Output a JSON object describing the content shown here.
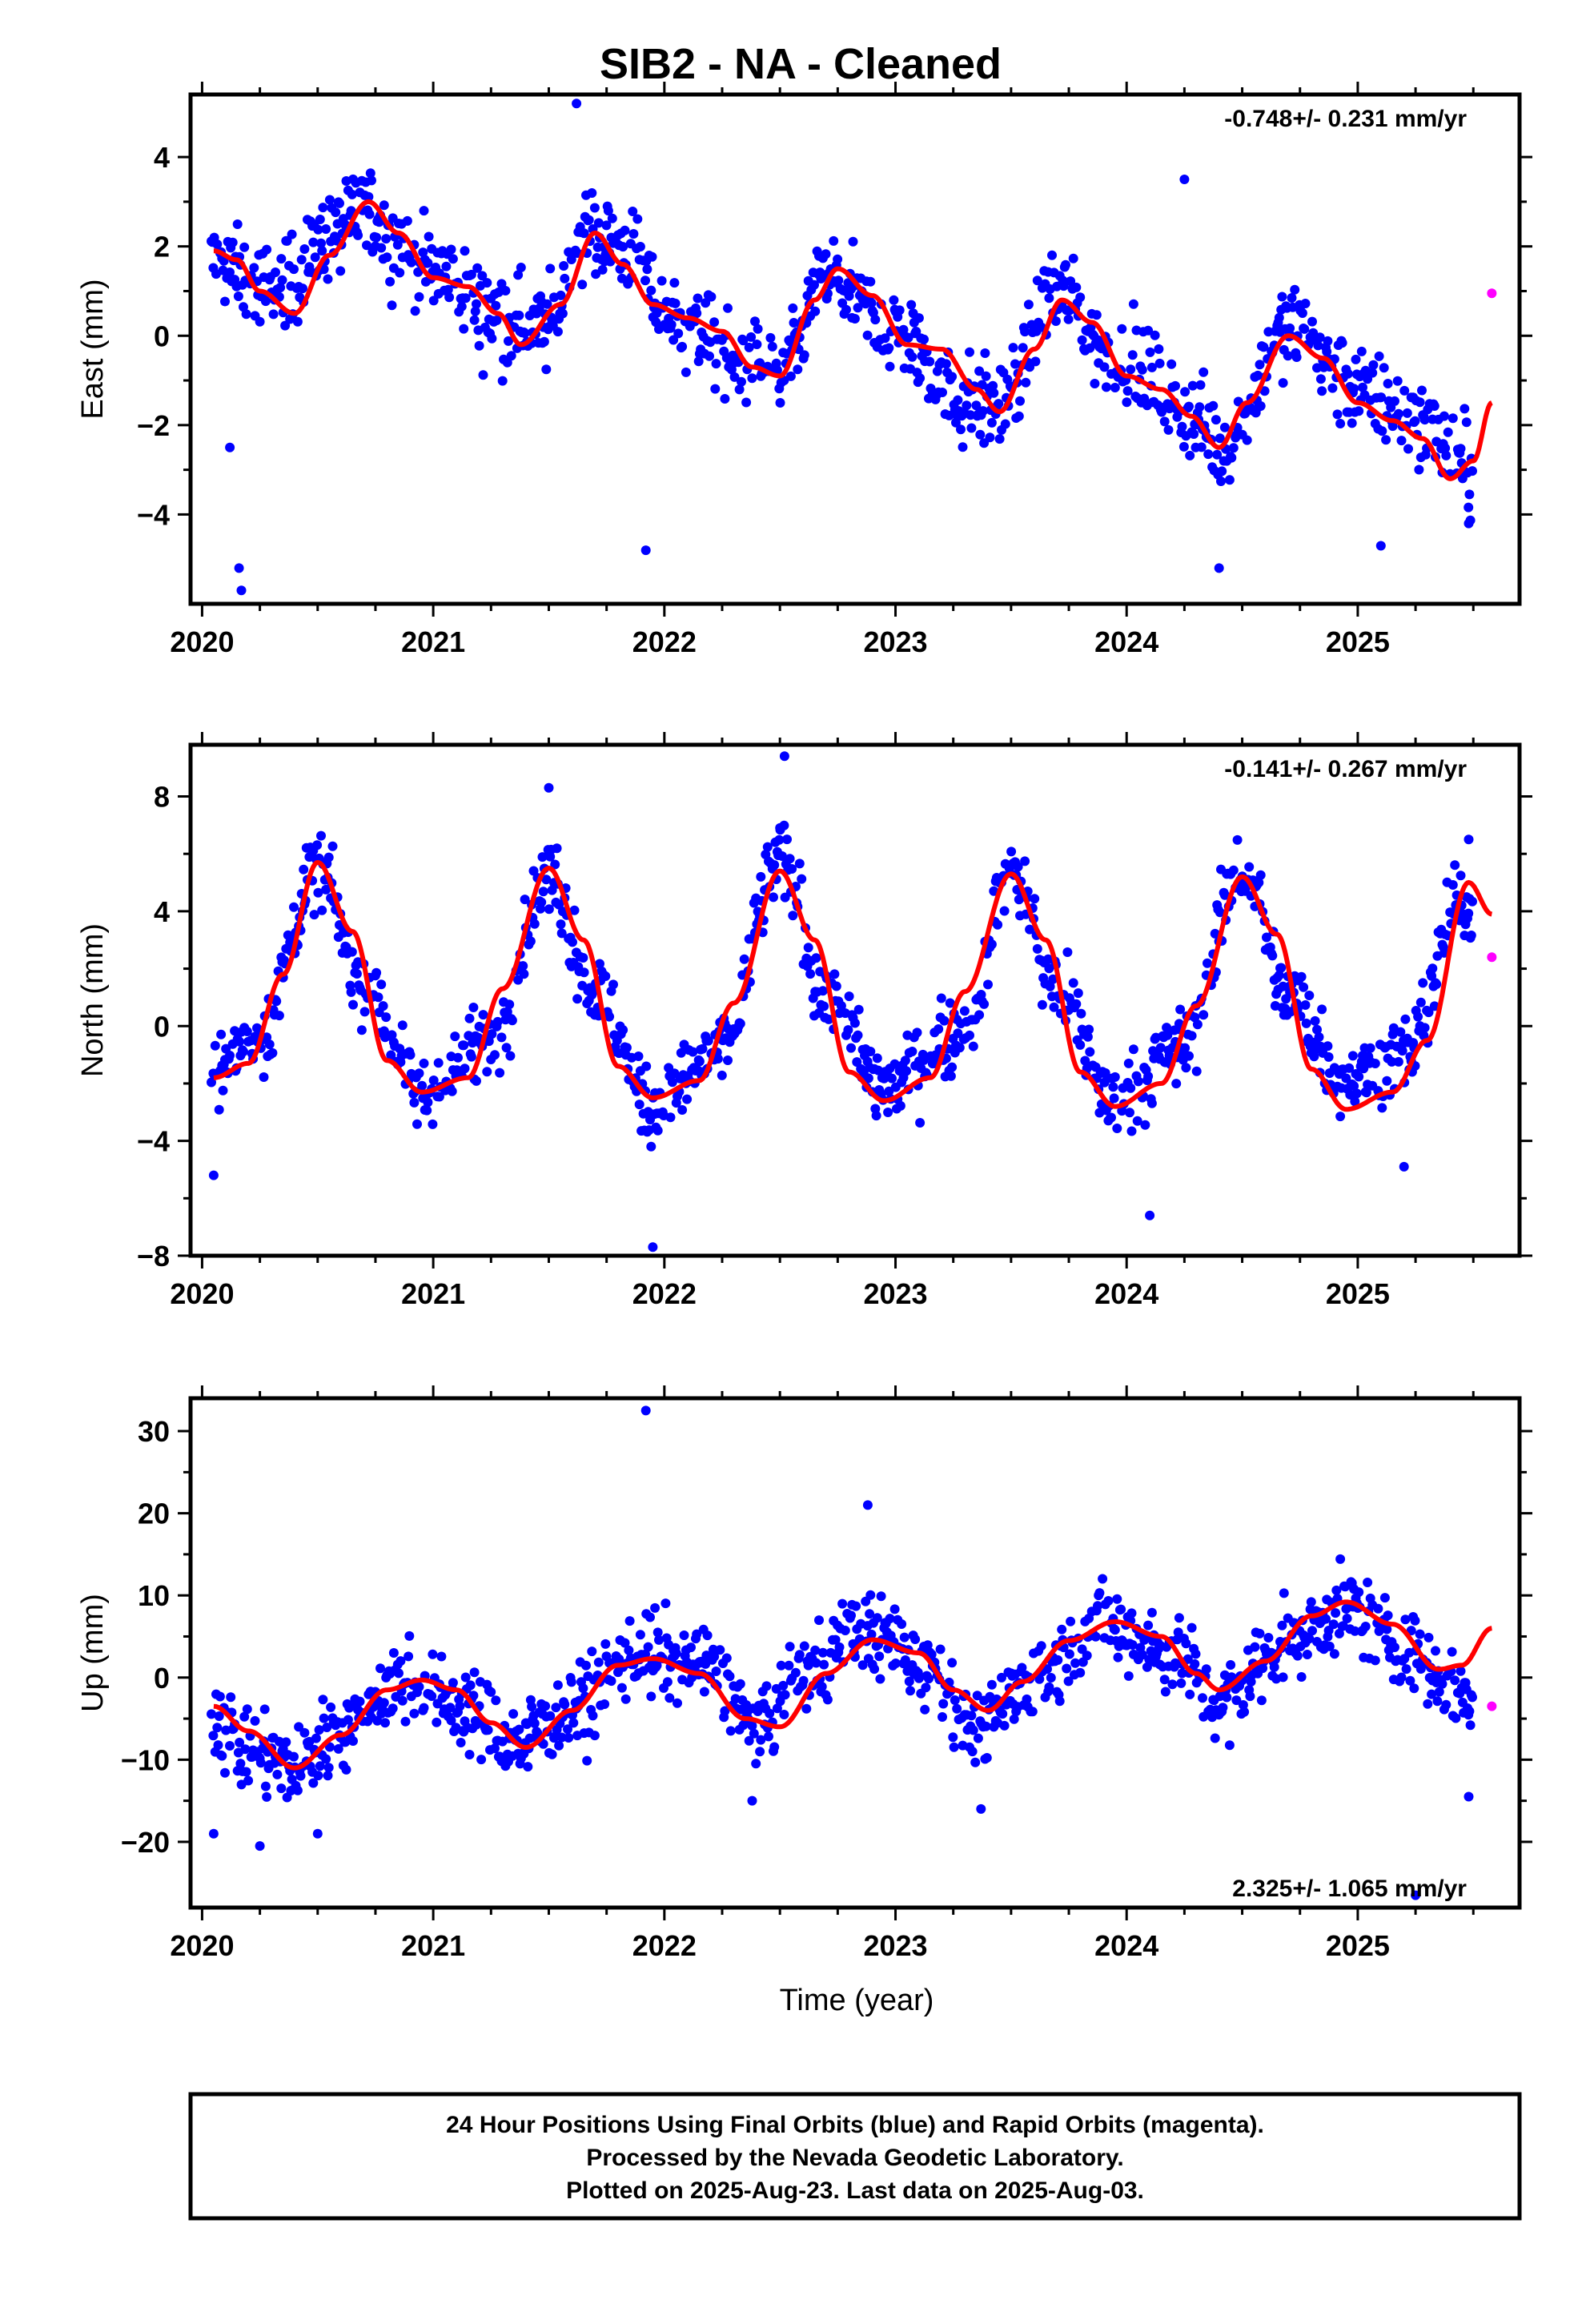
{
  "title": "SIB2  - NA - Cleaned",
  "x_axis_label": "Time (year)",
  "footer": {
    "line1": "24 Hour Positions Using Final Orbits (blue) and Rapid Orbits (magenta).",
    "line2": "Processed by the Nevada Geodetic Laboratory.",
    "line3": "Plotted on 2025-Aug-23. Last data on 2025-Aug-03."
  },
  "colors": {
    "final_orbits": "#0000ff",
    "rapid_orbits": "#ff00ff",
    "model_fit": "#ff0000",
    "frame": "#000000"
  },
  "chart_data": [
    {
      "type": "scatter",
      "panel": "east",
      "ylabel": "East (mm)",
      "rate": "-0.748+/- 0.231 mm/yr",
      "rate_position": "top-right",
      "xlim": [
        2019.95,
        2025.7
      ],
      "ylim": [
        -6,
        5.4
      ],
      "x_ticks": [
        "2020",
        "2021",
        "2022",
        "2023",
        "2024",
        "2025"
      ],
      "y_ticks": [
        "4",
        "2",
        "0",
        "−2",
        "−4"
      ],
      "y_tick_values": [
        4,
        2,
        0,
        -2,
        -4
      ],
      "series": [
        {
          "kind": "model_fit",
          "color": "#ff0000",
          "x": [
            2020.05,
            2020.15,
            2020.25,
            2020.4,
            2020.55,
            2020.72,
            2020.85,
            2021.0,
            2021.15,
            2021.28,
            2021.38,
            2021.55,
            2021.7,
            2021.82,
            2021.95,
            2022.1,
            2022.25,
            2022.38,
            2022.5,
            2022.65,
            2022.75,
            2022.9,
            2023.05,
            2023.2,
            2023.35,
            2023.45,
            2023.6,
            2023.72,
            2023.85,
            2024.0,
            2024.15,
            2024.28,
            2024.4,
            2024.52,
            2024.7,
            2024.85,
            2025.0,
            2025.15,
            2025.28,
            2025.4,
            2025.5,
            2025.58
          ],
          "y": [
            1.9,
            1.7,
            1.0,
            0.5,
            1.8,
            3.0,
            2.3,
            1.3,
            1.1,
            0.5,
            -0.2,
            0.7,
            2.3,
            1.6,
            0.7,
            0.4,
            0.1,
            -0.7,
            -0.9,
            0.8,
            1.5,
            0.9,
            -0.2,
            -0.3,
            -1.2,
            -1.7,
            -0.3,
            0.8,
            0.3,
            -0.9,
            -1.2,
            -1.8,
            -2.5,
            -1.5,
            0.0,
            -0.5,
            -1.5,
            -1.9,
            -2.3,
            -3.2,
            -2.8,
            -1.5
          ]
        },
        {
          "kind": "final_orbits_trend",
          "color": "#0000ff",
          "x": [
            2020.05,
            2020.3,
            2020.6,
            2020.7,
            2020.95,
            2021.3,
            2021.5,
            2021.65,
            2021.8,
            2022.05,
            2022.35,
            2022.5,
            2022.7,
            2023.0,
            2023.3,
            2023.45,
            2023.7,
            2024.0,
            2024.3,
            2024.42,
            2024.7,
            2025.0,
            2025.3,
            2025.45
          ],
          "y": [
            1.6,
            1.0,
            2.4,
            2.8,
            1.6,
            0.4,
            0.2,
            2.4,
            2.0,
            0.3,
            -0.6,
            -1.0,
            1.3,
            0.1,
            -1.4,
            -1.6,
            1.0,
            -0.7,
            -1.8,
            -2.5,
            0.2,
            -1.2,
            -2.0,
            -2.9
          ],
          "spread": 0.9,
          "outliers": [
            [
              2020.12,
              -2.5
            ],
            [
              2020.16,
              -5.2
            ],
            [
              2020.17,
              -5.7
            ],
            [
              2021.62,
              5.2
            ],
            [
              2021.92,
              -4.8
            ],
            [
              2024.25,
              3.5
            ],
            [
              2024.4,
              -5.2
            ],
            [
              2025.1,
              -4.7
            ],
            [
              2025.48,
              -4.2
            ]
          ]
        },
        {
          "kind": "rapid_orbits",
          "color": "#ff00ff",
          "x": [
            2025.58
          ],
          "y": [
            0.95
          ]
        }
      ]
    },
    {
      "type": "scatter",
      "panel": "north",
      "ylabel": "North (mm)",
      "rate": "-0.141+/- 0.267 mm/yr",
      "rate_position": "top-right",
      "xlim": [
        2019.95,
        2025.7
      ],
      "ylim": [
        -8,
        9.8
      ],
      "x_ticks": [
        "2020",
        "2021",
        "2022",
        "2023",
        "2024",
        "2025"
      ],
      "y_ticks": [
        "8",
        "4",
        "0",
        "−4",
        "−8"
      ],
      "y_tick_values": [
        8,
        4,
        0,
        -4,
        -8
      ],
      "series": [
        {
          "kind": "model_fit",
          "color": "#ff0000",
          "x": [
            2020.05,
            2020.2,
            2020.35,
            2020.5,
            2020.65,
            2020.8,
            2020.95,
            2021.15,
            2021.3,
            2021.5,
            2021.65,
            2021.8,
            2021.95,
            2022.15,
            2022.3,
            2022.5,
            2022.65,
            2022.8,
            2022.95,
            2023.15,
            2023.3,
            2023.5,
            2023.65,
            2023.8,
            2023.95,
            2024.15,
            2024.3,
            2024.5,
            2024.65,
            2024.8,
            2024.95,
            2025.15,
            2025.3,
            2025.48,
            2025.58
          ],
          "y": [
            -1.8,
            -1.3,
            1.8,
            5.7,
            3.3,
            -1.2,
            -2.3,
            -1.8,
            1.3,
            5.5,
            3.0,
            -1.4,
            -2.5,
            -1.9,
            0.8,
            5.4,
            3.0,
            -1.6,
            -2.6,
            -1.8,
            1.2,
            5.3,
            3.0,
            -1.6,
            -2.8,
            -2.0,
            0.7,
            5.2,
            3.2,
            -1.5,
            -2.9,
            -2.3,
            -0.5,
            5.0,
            3.9
          ]
        },
        {
          "kind": "final_orbits_trend",
          "color": "#0000ff",
          "x": [
            2020.05,
            2020.25,
            2020.5,
            2020.7,
            2020.95,
            2021.25,
            2021.5,
            2021.7,
            2021.95,
            2022.25,
            2022.5,
            2022.7,
            2022.95,
            2023.3,
            2023.5,
            2023.7,
            2023.95,
            2024.25,
            2024.5,
            2024.7,
            2024.95,
            2025.2,
            2025.45
          ],
          "y": [
            -1.6,
            -0.3,
            5.5,
            1.5,
            -2.4,
            -0.5,
            5.2,
            1.2,
            -2.8,
            -0.8,
            5.8,
            1.0,
            -2.1,
            -0.2,
            5.4,
            1.0,
            -2.6,
            -0.6,
            5.5,
            1.0,
            -1.8,
            -1.0,
            4.2
          ],
          "spread": 1.2,
          "outliers": [
            [
              2021.5,
              8.3
            ],
            [
              2022.52,
              9.4
            ],
            [
              2021.95,
              -7.7
            ],
            [
              2022.5,
              6.9
            ],
            [
              2024.1,
              -6.6
            ],
            [
              2025.2,
              -4.9
            ],
            [
              2025.48,
              6.5
            ],
            [
              2020.05,
              -5.2
            ]
          ]
        },
        {
          "kind": "rapid_orbits",
          "color": "#ff00ff",
          "x": [
            2025.58
          ],
          "y": [
            2.4
          ]
        }
      ]
    },
    {
      "type": "scatter",
      "panel": "up",
      "ylabel": "Up (mm)",
      "rate": "2.325+/- 1.065 mm/yr",
      "rate_position": "bottom-right",
      "xlim": [
        2019.95,
        2025.7
      ],
      "ylim": [
        -28,
        34
      ],
      "x_ticks": [
        "2020",
        "2021",
        "2022",
        "2023",
        "2024",
        "2025"
      ],
      "y_ticks": [
        "30",
        "20",
        "10",
        "0",
        "−10",
        "−20"
      ],
      "y_tick_values": [
        30,
        20,
        10,
        0,
        -10,
        -20
      ],
      "series": [
        {
          "kind": "model_fit",
          "color": "#ff0000",
          "x": [
            2020.05,
            2020.2,
            2020.4,
            2020.6,
            2020.8,
            2020.95,
            2021.1,
            2021.25,
            2021.4,
            2021.6,
            2021.8,
            2021.95,
            2022.15,
            2022.35,
            2022.5,
            2022.7,
            2022.9,
            2023.1,
            2023.25,
            2023.4,
            2023.55,
            2023.75,
            2023.95,
            2024.15,
            2024.3,
            2024.4,
            2024.6,
            2024.8,
            2024.95,
            2025.15,
            2025.35,
            2025.45,
            2025.58
          ],
          "y": [
            -3.5,
            -6.5,
            -11.0,
            -7.0,
            -1.5,
            -0.3,
            -1.5,
            -5.5,
            -8.5,
            -4.0,
            1.5,
            2.3,
            0.5,
            -5.0,
            -6.0,
            0.5,
            4.6,
            3.0,
            -1.5,
            -4.0,
            -0.5,
            4.5,
            6.8,
            5.0,
            0.5,
            -1.5,
            2.0,
            7.5,
            9.2,
            6.5,
            1.0,
            1.5,
            6.0
          ]
        },
        {
          "kind": "final_orbits_trend",
          "color": "#0000ff",
          "x": [
            2020.05,
            2020.2,
            2020.4,
            2020.6,
            2020.85,
            2021.1,
            2021.35,
            2021.6,
            2021.9,
            2022.2,
            2022.4,
            2022.6,
            2022.85,
            2023.15,
            2023.35,
            2023.6,
            2023.9,
            2024.2,
            2024.4,
            2024.7,
            2024.95,
            2025.2,
            2025.45
          ],
          "y": [
            -5.0,
            -9.0,
            -11.0,
            -6.0,
            -0.5,
            -3.0,
            -8.0,
            -3.5,
            3.0,
            1.5,
            -6.5,
            0.5,
            6.0,
            1.5,
            -6.5,
            0.0,
            6.5,
            3.0,
            -3.0,
            4.5,
            8.5,
            3.5,
            -1.5
          ],
          "spread": 4.5,
          "outliers": [
            [
              2021.92,
              32.5
            ],
            [
              2022.88,
              21.0
            ],
            [
              2020.05,
              -19.0
            ],
            [
              2020.25,
              -20.5
            ],
            [
              2020.5,
              -19.0
            ],
            [
              2025.25,
              -26.5
            ],
            [
              2025.48,
              -14.5
            ],
            [
              2022.38,
              -15.0
            ],
            [
              2023.37,
              -16.0
            ]
          ]
        },
        {
          "kind": "rapid_orbits",
          "color": "#ff00ff",
          "x": [
            2025.58
          ],
          "y": [
            -3.5
          ]
        }
      ]
    }
  ]
}
